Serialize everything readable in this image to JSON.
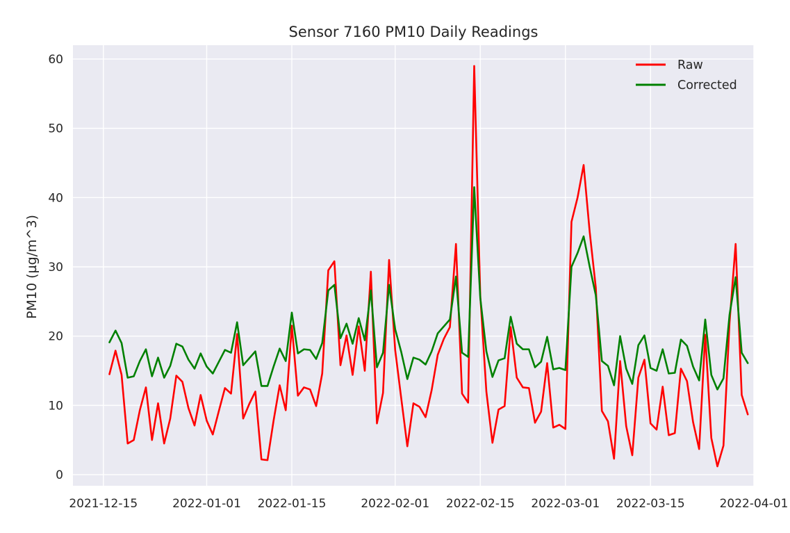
{
  "chart_data": {
    "type": "line",
    "title": "Sensor 7160 PM10 Daily Readings",
    "xlabel": "",
    "ylabel": "PM10 (µg/m^3)",
    "x_ticks": [
      "2021-12-15",
      "2022-01-01",
      "2022-01-15",
      "2022-02-01",
      "2022-02-15",
      "2022-03-01",
      "2022-03-15",
      "2022-04-01"
    ],
    "y_ticks": [
      "0",
      "10",
      "20",
      "30",
      "40",
      "50",
      "60"
    ],
    "xlim": [
      "2021-12-10",
      "2022-04-01"
    ],
    "ylim": [
      -1.6,
      62
    ],
    "grid": true,
    "legend_position": "top-right",
    "x_start": "2021-12-16",
    "series": [
      {
        "name": "Raw",
        "color": "#ff0000",
        "values": [
          14.5,
          17.9,
          14.4,
          4.5,
          5.0,
          9.3,
          12.6,
          5.0,
          10.3,
          4.5,
          8.1,
          14.3,
          13.4,
          9.6,
          7.1,
          11.5,
          7.8,
          5.8,
          9.2,
          12.5,
          11.7,
          20.3,
          8.1,
          10.2,
          12.0,
          2.2,
          2.1,
          7.8,
          12.9,
          9.3,
          21.5,
          11.4,
          12.6,
          12.3,
          9.9,
          14.6,
          29.5,
          30.8,
          15.8,
          20.1,
          14.4,
          21.4,
          15.0,
          29.3,
          7.4,
          11.8,
          31.0,
          18.0,
          11.0,
          4.1,
          10.3,
          9.8,
          8.3,
          12.2,
          17.3,
          19.6,
          21.3,
          33.3,
          11.7,
          10.4,
          59.0,
          25.8,
          12.0,
          4.6,
          9.4,
          9.9,
          21.3,
          14.0,
          12.6,
          12.5,
          7.5,
          9.1,
          16.1,
          6.8,
          7.2,
          6.6,
          36.5,
          40.0,
          44.7,
          35.0,
          27.0,
          9.2,
          7.7,
          2.3,
          16.4,
          7.0,
          2.8,
          14.0,
          16.6,
          7.4,
          6.5,
          12.7,
          5.7,
          6.0,
          15.3,
          13.5,
          7.6,
          3.7,
          20.2,
          5.3,
          1.2,
          4.2,
          22.0,
          33.3,
          11.5,
          8.7
        ]
      },
      {
        "name": "Corrected",
        "color": "#008000",
        "values": [
          19.1,
          20.8,
          19.0,
          14.0,
          14.2,
          16.4,
          18.1,
          14.2,
          16.9,
          14.0,
          15.7,
          18.9,
          18.5,
          16.6,
          15.3,
          17.5,
          15.6,
          14.6,
          16.3,
          18.0,
          17.6,
          22.0,
          15.8,
          16.8,
          17.8,
          12.8,
          12.8,
          15.6,
          18.2,
          16.4,
          23.4,
          17.5,
          18.1,
          18.0,
          16.7,
          19.0,
          26.6,
          27.4,
          19.7,
          21.8,
          18.9,
          22.6,
          19.4,
          26.6,
          15.5,
          17.6,
          27.4,
          21.0,
          17.7,
          13.8,
          16.9,
          16.6,
          15.9,
          17.8,
          20.4,
          21.4,
          22.4,
          28.6,
          17.6,
          17.0,
          41.5,
          25.5,
          17.8,
          14.1,
          16.5,
          16.8,
          22.8,
          18.9,
          18.1,
          18.1,
          15.5,
          16.3,
          19.9,
          15.2,
          15.4,
          15.1,
          30.0,
          32.0,
          34.4,
          30.0,
          25.9,
          16.4,
          15.7,
          12.9,
          20.0,
          15.3,
          13.1,
          18.7,
          20.1,
          15.4,
          15.0,
          18.1,
          14.6,
          14.7,
          19.5,
          18.6,
          15.6,
          13.6,
          22.4,
          14.4,
          12.3,
          13.9,
          23.1,
          28.5,
          17.6,
          16.1
        ]
      }
    ]
  }
}
